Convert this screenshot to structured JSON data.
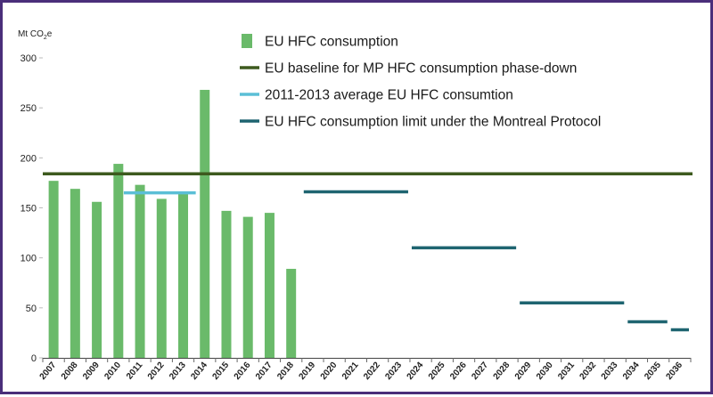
{
  "chart_data": {
    "type": "bar",
    "ylabel": "Mt CO",
    "ylabel_subscript": "2",
    "ylabel_suffix": "e",
    "ylim": [
      0,
      300
    ],
    "yticks": [
      0,
      50,
      100,
      150,
      200,
      250,
      300
    ],
    "categories": [
      "2007",
      "2008",
      "2009",
      "2010",
      "2011",
      "2012",
      "2013",
      "2014",
      "2015",
      "2016",
      "2017",
      "2018",
      "2019",
      "2020",
      "2021",
      "2022",
      "2023",
      "2024",
      "2025",
      "2026",
      "2027",
      "2028",
      "2029",
      "2030",
      "2031",
      "2032",
      "2033",
      "2034",
      "2035",
      "2036"
    ],
    "series": [
      {
        "name": "EU HFC consumption",
        "color": "#6aba6a",
        "values": [
          177,
          169,
          156,
          194,
          173,
          159,
          165,
          268,
          147,
          141,
          145,
          89,
          null,
          null,
          null,
          null,
          null,
          null,
          null,
          null,
          null,
          null,
          null,
          null,
          null,
          null,
          null,
          null,
          null,
          null
        ]
      }
    ],
    "lines": [
      {
        "name": "EU baseline for MP HFC consumption phase-down",
        "color": "#3d5a1e",
        "value": 184,
        "from": "2007",
        "to": "2036"
      },
      {
        "name": "2011-2013 average EU HFC consumtion",
        "color": "#5bbfd6",
        "value": 165,
        "from": "2011",
        "to": "2013"
      }
    ],
    "steps": {
      "name": "EU HFC consumption limit under the Montreal Protocol",
      "color": "#1e6470",
      "segments": [
        {
          "from": "2019",
          "to": "2023",
          "value": 166
        },
        {
          "from": "2024",
          "to": "2028",
          "value": 110
        },
        {
          "from": "2029",
          "to": "2033",
          "value": 55
        },
        {
          "from": "2034",
          "to": "2035",
          "value": 36
        },
        {
          "from": "2036",
          "to": "2036",
          "value": 28
        }
      ]
    },
    "legend": [
      {
        "label": "EU HFC consumption",
        "kind": "bar",
        "color": "#6aba6a"
      },
      {
        "label": "EU baseline for MP HFC consumption phase-down",
        "kind": "line",
        "color": "#3d5a1e"
      },
      {
        "label": "2011-2013 average EU HFC consumtion",
        "kind": "line",
        "color": "#5bbfd6"
      },
      {
        "label": "EU HFC consumption limit under the Montreal Protocol",
        "kind": "line",
        "color": "#1e6470"
      }
    ],
    "legend_position": "top-center"
  }
}
